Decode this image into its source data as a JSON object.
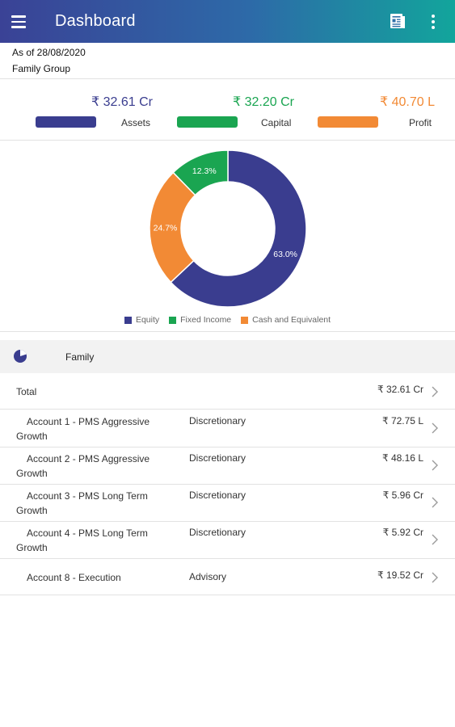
{
  "app_bar": {
    "title": "Dashboard",
    "menu_icon": "menu-icon",
    "report_icon": "report-icon",
    "more_icon": "more-vertical-icon"
  },
  "header": {
    "as_of": "As of 28/08/2020",
    "group": "Family Group"
  },
  "summary": [
    {
      "value": "₹ 32.61 Cr",
      "label": "Assets",
      "color": "#3a3d8f"
    },
    {
      "value": "₹ 32.20 Cr",
      "label": "Capital",
      "color": "#1aa551"
    },
    {
      "value": "₹ 40.70 L",
      "label": "Profit",
      "color": "#f28a35"
    }
  ],
  "chart_data": {
    "type": "pie",
    "donut": true,
    "categories": [
      "Equity",
      "Fixed Income",
      "Cash and Equivalent"
    ],
    "values": [
      63.0,
      12.3,
      24.7
    ],
    "value_labels": [
      "63.0%",
      "12.3%",
      "24.7%"
    ],
    "colors": [
      "#3a3d8f",
      "#1aa551",
      "#f28a35"
    ],
    "legend_position": "bottom"
  },
  "family": {
    "label": "Family",
    "icon": "pie-chart-icon"
  },
  "rows": [
    {
      "name_line1": "Total",
      "name_line2": "",
      "type": "",
      "amount": "₹ 32.61 Cr"
    },
    {
      "name_line1": "Account 1 - PMS Aggressive",
      "name_line2": "Growth",
      "type": "Discretionary",
      "amount": "₹ 72.75 L"
    },
    {
      "name_line1": "Account 2 - PMS Aggressive",
      "name_line2": "Growth",
      "type": "Discretionary",
      "amount": "₹ 48.16 L"
    },
    {
      "name_line1": "Account 3 - PMS Long Term",
      "name_line2": "Growth",
      "type": "Discretionary",
      "amount": "₹ 5.96 Cr"
    },
    {
      "name_line1": "Account 4 - PMS Long Term",
      "name_line2": "Growth",
      "type": "Discretionary",
      "amount": "₹ 5.92 Cr"
    },
    {
      "name_line1": "Account 8 - Execution",
      "name_line2": "",
      "type": "Advisory",
      "amount": "₹ 19.52 Cr"
    }
  ]
}
